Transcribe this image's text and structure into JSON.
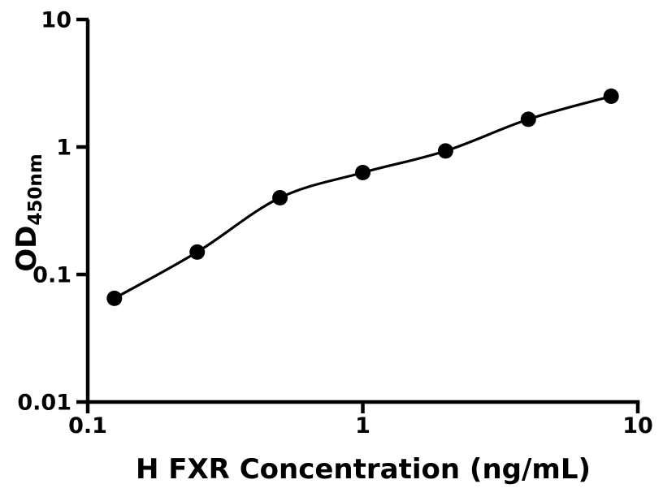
{
  "figure": {
    "background": "#ffffff",
    "foreground": "#000000"
  },
  "chart_data": {
    "type": "scatter",
    "title": "",
    "xlabel": "H FXR Concentration (ng/mL)",
    "ylabel": "OD450nm",
    "ylabel_main": "OD",
    "ylabel_sub": "450nm",
    "xscale": "log",
    "yscale": "log",
    "xlim": [
      0.1,
      10
    ],
    "ylim": [
      0.01,
      10
    ],
    "x_ticks": {
      "values": [
        0.1,
        1,
        10
      ],
      "labels": [
        "0.1",
        "1",
        "10"
      ]
    },
    "y_ticks": {
      "values": [
        10,
        1,
        0.1,
        0.01
      ],
      "labels": [
        "10",
        "1",
        "0.1",
        "0.01"
      ]
    },
    "grid": false,
    "legend": false,
    "series": [
      {
        "marker": "filled-circle",
        "marker_color": "#000000",
        "line_color": "#000000",
        "has_fit_curve": true,
        "x": [
          0.125,
          0.25,
          0.5,
          1,
          2,
          4,
          8
        ],
        "y": [
          0.065,
          0.15,
          0.4,
          0.63,
          0.93,
          1.65,
          2.5
        ]
      }
    ]
  }
}
